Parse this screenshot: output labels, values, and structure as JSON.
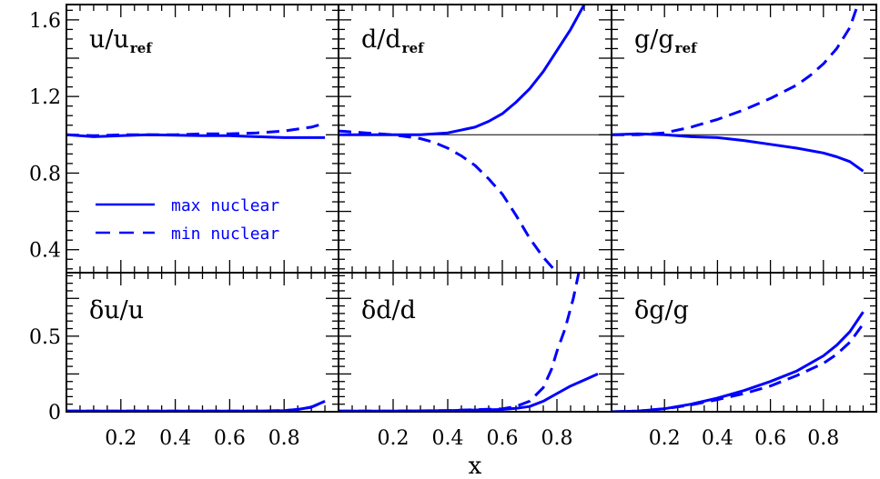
{
  "figure": {
    "xlabel": "x",
    "colors": {
      "line": "#0000ff",
      "frame": "#000000",
      "reference": "#000000"
    }
  },
  "legend": {
    "entries": [
      {
        "label": "max nuclear",
        "style": "solid"
      },
      {
        "label": "min nuclear",
        "style": "dashed"
      }
    ]
  },
  "chart_data": [
    {
      "type": "line",
      "panel": "top-left",
      "title": "u/u",
      "title_subscript": "ref",
      "xlim": [
        0.0,
        1.0
      ],
      "ylim": [
        0.28,
        1.68
      ],
      "yticks": [
        0.4,
        0.8,
        1.2,
        1.6
      ],
      "ytick_labels": [
        "0.4",
        "0.8",
        "1.2",
        "1.6"
      ],
      "xticks": [],
      "reference_line": null,
      "series": [
        {
          "name": "max nuclear",
          "style": "solid",
          "x": [
            0.0,
            0.1,
            0.2,
            0.3,
            0.4,
            0.5,
            0.6,
            0.7,
            0.8,
            0.9,
            0.95
          ],
          "y": [
            1.0,
            0.99,
            0.995,
            1.0,
            0.998,
            0.995,
            0.995,
            0.99,
            0.985,
            0.985,
            0.985
          ]
        },
        {
          "name": "min nuclear",
          "style": "dashed",
          "x": [
            0.0,
            0.1,
            0.2,
            0.3,
            0.4,
            0.5,
            0.6,
            0.7,
            0.8,
            0.9,
            0.95
          ],
          "y": [
            1.0,
            0.995,
            1.0,
            1.0,
            1.0,
            1.005,
            1.005,
            1.01,
            1.02,
            1.04,
            1.06
          ]
        }
      ]
    },
    {
      "type": "line",
      "panel": "top-middle",
      "title": "d/d",
      "title_subscript": "ref",
      "xlim": [
        0.0,
        1.0
      ],
      "ylim": [
        0.28,
        1.68
      ],
      "yticks": [
        0.4,
        0.8,
        1.2,
        1.6
      ],
      "xticks": [],
      "reference_line": 1.0,
      "series": [
        {
          "name": "max nuclear",
          "style": "solid",
          "x": [
            0.0,
            0.1,
            0.2,
            0.3,
            0.4,
            0.5,
            0.55,
            0.6,
            0.65,
            0.7,
            0.75,
            0.8,
            0.85,
            0.9
          ],
          "y": [
            1.0,
            1.0,
            1.0,
            1.0,
            1.01,
            1.04,
            1.07,
            1.11,
            1.17,
            1.24,
            1.33,
            1.44,
            1.55,
            1.68
          ]
        },
        {
          "name": "min nuclear",
          "style": "dashed",
          "x": [
            0.0,
            0.1,
            0.2,
            0.3,
            0.35,
            0.4,
            0.45,
            0.5,
            0.55,
            0.6,
            0.65,
            0.7,
            0.75,
            0.8
          ],
          "y": [
            1.02,
            1.01,
            1.0,
            0.98,
            0.96,
            0.93,
            0.89,
            0.84,
            0.77,
            0.69,
            0.58,
            0.46,
            0.36,
            0.28
          ]
        }
      ]
    },
    {
      "type": "line",
      "panel": "top-right",
      "title": "g/g",
      "title_subscript": "ref",
      "xlim": [
        0.0,
        1.0
      ],
      "ylim": [
        0.28,
        1.68
      ],
      "yticks": [
        0.4,
        0.8,
        1.2,
        1.6
      ],
      "xticks": [],
      "reference_line": 1.0,
      "series": [
        {
          "name": "max nuclear",
          "style": "solid",
          "x": [
            0.0,
            0.1,
            0.2,
            0.3,
            0.4,
            0.5,
            0.6,
            0.7,
            0.8,
            0.85,
            0.9,
            0.95
          ],
          "y": [
            1.0,
            1.005,
            1.0,
            0.99,
            0.985,
            0.97,
            0.95,
            0.93,
            0.905,
            0.885,
            0.86,
            0.81
          ]
        },
        {
          "name": "min nuclear",
          "style": "dashed",
          "x": [
            0.0,
            0.1,
            0.2,
            0.3,
            0.4,
            0.5,
            0.6,
            0.7,
            0.75,
            0.8,
            0.85,
            0.9,
            0.93
          ],
          "y": [
            1.0,
            1.0,
            1.01,
            1.04,
            1.08,
            1.13,
            1.19,
            1.26,
            1.31,
            1.37,
            1.45,
            1.56,
            1.68
          ]
        }
      ]
    },
    {
      "type": "line",
      "panel": "bottom-left",
      "title": "δu/u",
      "xlim": [
        0.0,
        1.0
      ],
      "ylim": [
        0.0,
        0.92
      ],
      "yticks": [
        0,
        0.5
      ],
      "ytick_labels": [
        "0",
        "0.5"
      ],
      "xticks": [
        0.2,
        0.4,
        0.6,
        0.8
      ],
      "xtick_labels": [
        "0.2",
        "0.4",
        "0.6",
        "0.8"
      ],
      "series": [
        {
          "name": "max nuclear",
          "style": "solid",
          "x": [
            0.0,
            0.2,
            0.4,
            0.6,
            0.7,
            0.8,
            0.85,
            0.9,
            0.95
          ],
          "y": [
            0.005,
            0.005,
            0.005,
            0.005,
            0.005,
            0.008,
            0.015,
            0.03,
            0.07
          ]
        },
        {
          "name": "min nuclear",
          "style": "dashed",
          "x": [
            0.0,
            0.2,
            0.4,
            0.6,
            0.7,
            0.8,
            0.85,
            0.9,
            0.95
          ],
          "y": [
            0.005,
            0.005,
            0.005,
            0.005,
            0.005,
            0.008,
            0.015,
            0.03,
            0.07
          ]
        }
      ]
    },
    {
      "type": "line",
      "panel": "bottom-middle",
      "title": "δd/d",
      "xlim": [
        0.0,
        1.0
      ],
      "ylim": [
        0.0,
        0.92
      ],
      "yticks": [
        0,
        0.5
      ],
      "xticks": [
        0.2,
        0.4,
        0.6,
        0.8
      ],
      "xtick_labels": [
        "0.2",
        "0.4",
        "0.6",
        "0.8"
      ],
      "series": [
        {
          "name": "max nuclear",
          "style": "solid",
          "x": [
            0.0,
            0.2,
            0.4,
            0.6,
            0.65,
            0.7,
            0.75,
            0.8,
            0.85,
            0.9,
            0.95
          ],
          "y": [
            0.005,
            0.005,
            0.008,
            0.015,
            0.022,
            0.035,
            0.07,
            0.12,
            0.17,
            0.21,
            0.25
          ]
        },
        {
          "name": "min nuclear",
          "style": "dashed",
          "x": [
            0.0,
            0.2,
            0.4,
            0.6,
            0.65,
            0.7,
            0.75,
            0.78,
            0.8,
            0.83,
            0.86,
            0.88
          ],
          "y": [
            0.005,
            0.005,
            0.008,
            0.02,
            0.035,
            0.07,
            0.16,
            0.28,
            0.4,
            0.55,
            0.75,
            0.92
          ]
        }
      ]
    },
    {
      "type": "line",
      "panel": "bottom-right",
      "title": "δg/g",
      "xlim": [
        0.0,
        1.0
      ],
      "ylim": [
        0.0,
        0.92
      ],
      "yticks": [
        0,
        0.5
      ],
      "xticks": [
        0.2,
        0.4,
        0.6,
        0.8
      ],
      "xtick_labels": [
        "0.2",
        "0.4",
        "0.6",
        "0.8"
      ],
      "series": [
        {
          "name": "max nuclear",
          "style": "solid",
          "x": [
            0.0,
            0.1,
            0.2,
            0.3,
            0.4,
            0.5,
            0.6,
            0.7,
            0.8,
            0.85,
            0.9,
            0.95
          ],
          "y": [
            0.0,
            0.005,
            0.02,
            0.05,
            0.09,
            0.14,
            0.2,
            0.27,
            0.37,
            0.44,
            0.53,
            0.66
          ]
        },
        {
          "name": "min nuclear",
          "style": "dashed",
          "x": [
            0.0,
            0.1,
            0.2,
            0.3,
            0.4,
            0.5,
            0.6,
            0.7,
            0.8,
            0.85,
            0.9,
            0.95
          ],
          "y": [
            0.0,
            0.005,
            0.02,
            0.045,
            0.08,
            0.12,
            0.17,
            0.24,
            0.32,
            0.38,
            0.46,
            0.58
          ]
        }
      ]
    }
  ]
}
